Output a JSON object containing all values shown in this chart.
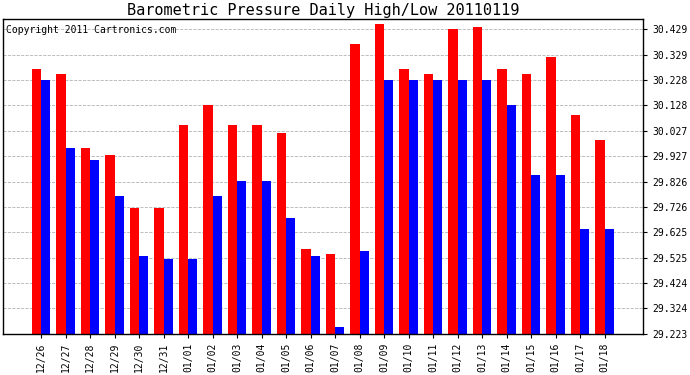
{
  "title": "Barometric Pressure Daily High/Low 20110119",
  "copyright": "Copyright 2011 Cartronics.com",
  "dates": [
    "12/26",
    "12/27",
    "12/28",
    "12/29",
    "12/30",
    "12/31",
    "01/01",
    "01/02",
    "01/03",
    "01/04",
    "01/05",
    "01/06",
    "01/07",
    "01/08",
    "01/09",
    "01/10",
    "01/11",
    "01/12",
    "01/13",
    "01/14",
    "01/15",
    "01/16",
    "01/17",
    "01/18"
  ],
  "highs": [
    30.27,
    30.25,
    29.96,
    29.93,
    29.72,
    29.72,
    30.05,
    30.13,
    30.05,
    30.05,
    30.02,
    29.56,
    29.54,
    30.37,
    30.45,
    30.27,
    30.25,
    30.43,
    30.44,
    30.27,
    30.25,
    30.32,
    30.09,
    29.99
  ],
  "lows": [
    30.23,
    29.96,
    29.91,
    29.77,
    29.53,
    29.52,
    29.52,
    29.77,
    29.83,
    29.83,
    29.68,
    29.53,
    29.25,
    29.55,
    30.23,
    30.23,
    30.23,
    30.23,
    30.23,
    30.13,
    29.85,
    29.85,
    29.64,
    29.64
  ],
  "ylim_min": 29.223,
  "ylim_max": 30.47,
  "yticks": [
    29.223,
    29.324,
    29.424,
    29.525,
    29.625,
    29.726,
    29.826,
    29.927,
    30.027,
    30.128,
    30.228,
    30.329,
    30.429
  ],
  "ytick_labels": [
    "29.223",
    "29.324",
    "29.424",
    "29.525",
    "29.625",
    "29.726",
    "29.826",
    "29.927",
    "30.027",
    "30.128",
    "30.228",
    "30.329",
    "30.429"
  ],
  "high_color": "#FF0000",
  "low_color": "#0000FF",
  "bg_color": "#FFFFFF",
  "grid_color": "#AAAAAA",
  "title_fontsize": 11,
  "copyright_fontsize": 7,
  "bar_width": 0.38,
  "figwidth": 6.9,
  "figheight": 3.75,
  "dpi": 100
}
